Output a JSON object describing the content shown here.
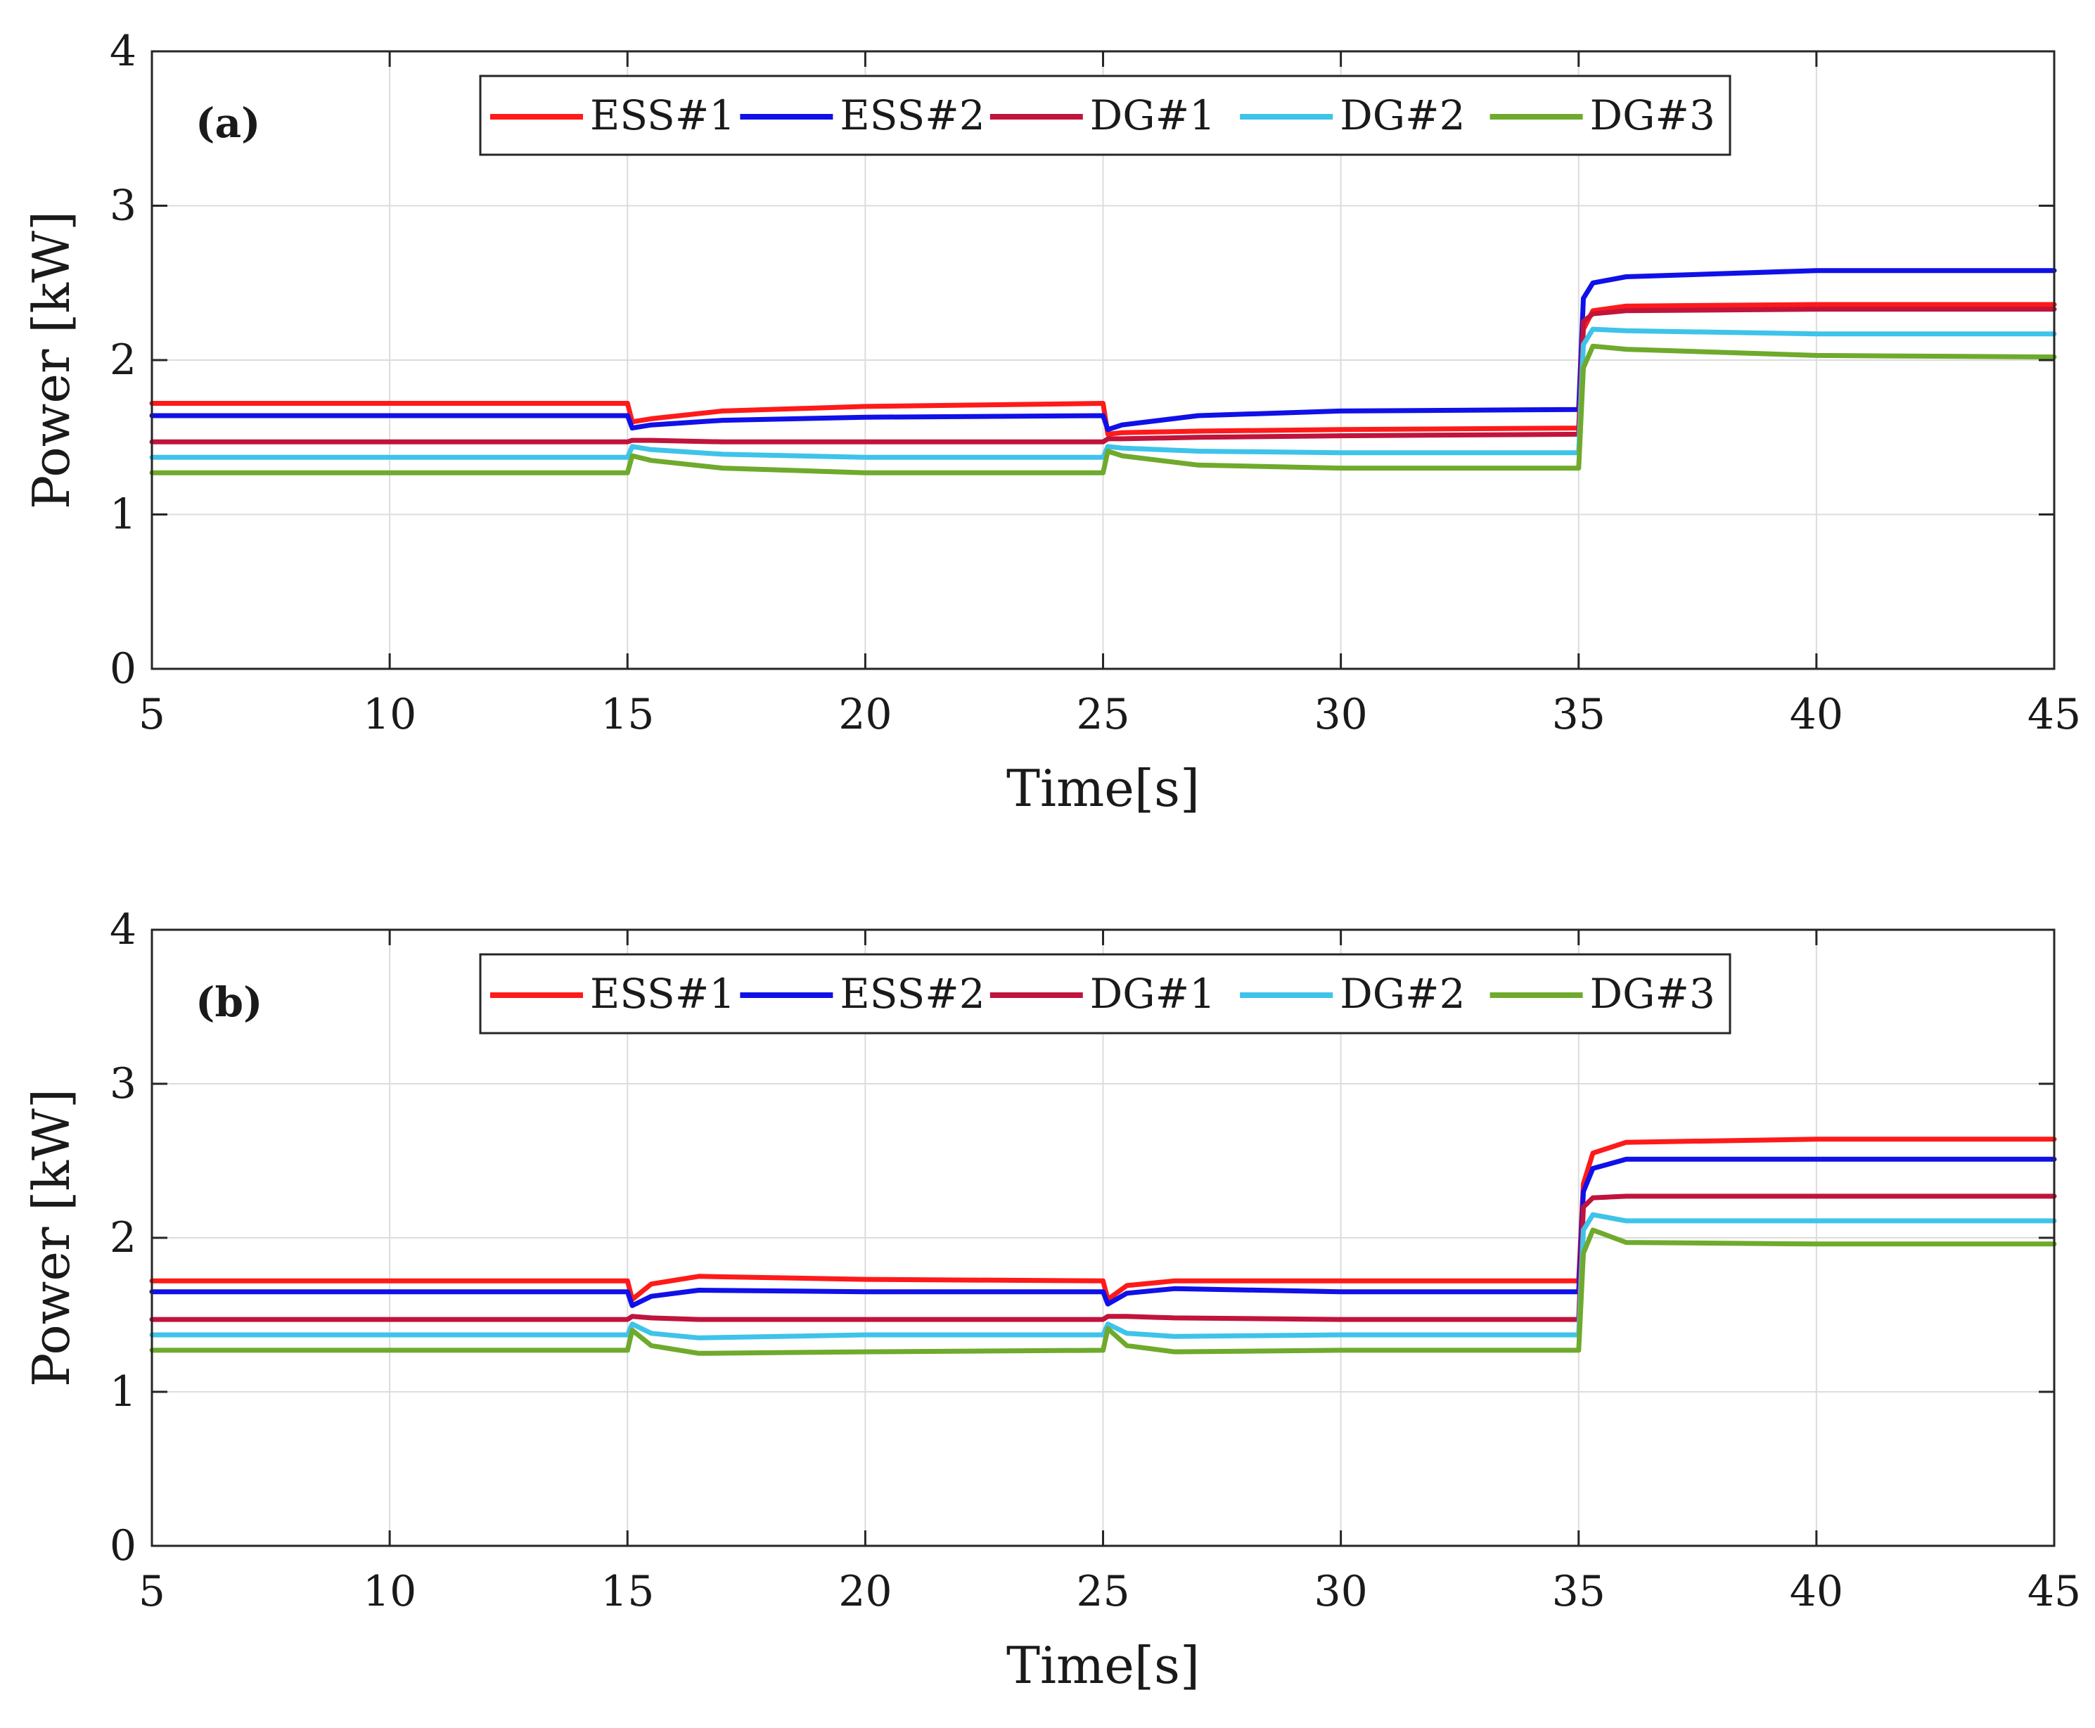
{
  "chart_data": [
    {
      "type": "line",
      "panel_label": "(a)",
      "xlabel": "Time[s]",
      "ylabel": "Power [kW]",
      "xlim": [
        5,
        45
      ],
      "ylim": [
        0,
        4
      ],
      "x_ticks": [
        5,
        10,
        15,
        20,
        25,
        30,
        35,
        40,
        45
      ],
      "y_ticks": [
        0,
        1,
        2,
        3,
        4
      ],
      "grid": true,
      "legend_position": "top-center",
      "series": [
        {
          "name": "ESS#1",
          "color": "#ff1a1a",
          "x": [
            5,
            15,
            15.1,
            15.5,
            17,
            20,
            25,
            25.1,
            25.4,
            27,
            30,
            35,
            35.1,
            35.3,
            36,
            40,
            45
          ],
          "y": [
            1.72,
            1.72,
            1.6,
            1.62,
            1.67,
            1.7,
            1.72,
            1.52,
            1.53,
            1.54,
            1.55,
            1.56,
            2.2,
            2.32,
            2.35,
            2.36,
            2.36
          ]
        },
        {
          "name": "ESS#2",
          "color": "#1010e8",
          "x": [
            5,
            15,
            15.1,
            15.5,
            17,
            20,
            25,
            25.1,
            25.4,
            27,
            30,
            35,
            35.1,
            35.3,
            36,
            40,
            45
          ],
          "y": [
            1.64,
            1.64,
            1.56,
            1.58,
            1.61,
            1.63,
            1.64,
            1.55,
            1.58,
            1.64,
            1.67,
            1.68,
            2.4,
            2.5,
            2.54,
            2.58,
            2.58
          ]
        },
        {
          "name": "DG#1",
          "color": "#c0143c",
          "x": [
            5,
            15,
            15.1,
            15.5,
            17,
            20,
            25,
            25.1,
            25.4,
            27,
            30,
            35,
            35.1,
            35.3,
            36,
            40,
            45
          ],
          "y": [
            1.47,
            1.47,
            1.48,
            1.48,
            1.47,
            1.47,
            1.47,
            1.49,
            1.49,
            1.5,
            1.51,
            1.52,
            2.25,
            2.3,
            2.32,
            2.33,
            2.33
          ]
        },
        {
          "name": "DG#2",
          "color": "#3ec3ea",
          "x": [
            5,
            15,
            15.1,
            15.5,
            17,
            20,
            25,
            25.1,
            25.4,
            27,
            30,
            35,
            35.1,
            35.3,
            36,
            40,
            45
          ],
          "y": [
            1.37,
            1.37,
            1.44,
            1.42,
            1.39,
            1.37,
            1.37,
            1.44,
            1.43,
            1.41,
            1.4,
            1.4,
            2.1,
            2.2,
            2.19,
            2.17,
            2.17
          ]
        },
        {
          "name": "DG#3",
          "color": "#6faa2c",
          "x": [
            5,
            15,
            15.1,
            15.5,
            17,
            20,
            25,
            25.1,
            25.4,
            27,
            30,
            35,
            35.1,
            35.3,
            36,
            40,
            45
          ],
          "y": [
            1.27,
            1.27,
            1.38,
            1.35,
            1.3,
            1.27,
            1.27,
            1.41,
            1.38,
            1.32,
            1.3,
            1.3,
            1.95,
            2.09,
            2.07,
            2.03,
            2.02
          ]
        }
      ]
    },
    {
      "type": "line",
      "panel_label": "(b)",
      "xlabel": "Time[s]",
      "ylabel": "Power [kW]",
      "xlim": [
        5,
        45
      ],
      "ylim": [
        0,
        4
      ],
      "x_ticks": [
        5,
        10,
        15,
        20,
        25,
        30,
        35,
        40,
        45
      ],
      "y_ticks": [
        0,
        1,
        2,
        3,
        4
      ],
      "grid": true,
      "legend_position": "top-center",
      "series": [
        {
          "name": "ESS#1",
          "color": "#ff1a1a",
          "x": [
            5,
            15,
            15.1,
            15.5,
            16.5,
            20,
            25,
            25.1,
            25.5,
            26.5,
            30,
            35,
            35.1,
            35.3,
            36,
            40,
            45
          ],
          "y": [
            1.72,
            1.72,
            1.6,
            1.7,
            1.75,
            1.73,
            1.72,
            1.6,
            1.69,
            1.72,
            1.72,
            1.72,
            2.35,
            2.55,
            2.62,
            2.64,
            2.64
          ]
        },
        {
          "name": "ESS#2",
          "color": "#1010e8",
          "x": [
            5,
            15,
            15.1,
            15.5,
            16.5,
            20,
            25,
            25.1,
            25.5,
            26.5,
            30,
            35,
            35.1,
            35.3,
            36,
            40,
            45
          ],
          "y": [
            1.65,
            1.65,
            1.56,
            1.62,
            1.66,
            1.65,
            1.65,
            1.57,
            1.64,
            1.67,
            1.65,
            1.65,
            2.3,
            2.45,
            2.51,
            2.51,
            2.51
          ]
        },
        {
          "name": "DG#1",
          "color": "#c0143c",
          "x": [
            5,
            15,
            15.1,
            15.5,
            16.5,
            20,
            25,
            25.1,
            25.5,
            26.5,
            30,
            35,
            35.1,
            35.3,
            36,
            40,
            45
          ],
          "y": [
            1.47,
            1.47,
            1.49,
            1.48,
            1.47,
            1.47,
            1.47,
            1.49,
            1.49,
            1.48,
            1.47,
            1.47,
            2.2,
            2.26,
            2.27,
            2.27,
            2.27
          ]
        },
        {
          "name": "DG#2",
          "color": "#3ec3ea",
          "x": [
            5,
            15,
            15.1,
            15.5,
            16.5,
            20,
            25,
            25.1,
            25.5,
            26.5,
            30,
            35,
            35.1,
            35.3,
            36,
            40,
            45
          ],
          "y": [
            1.37,
            1.37,
            1.44,
            1.38,
            1.35,
            1.37,
            1.37,
            1.44,
            1.38,
            1.36,
            1.37,
            1.37,
            2.05,
            2.15,
            2.11,
            2.11,
            2.11
          ]
        },
        {
          "name": "DG#3",
          "color": "#6faa2c",
          "x": [
            5,
            15,
            15.1,
            15.5,
            16.5,
            20,
            25,
            25.1,
            25.5,
            26.5,
            30,
            35,
            35.1,
            35.3,
            36,
            40,
            45
          ],
          "y": [
            1.27,
            1.27,
            1.4,
            1.3,
            1.25,
            1.26,
            1.27,
            1.41,
            1.3,
            1.26,
            1.27,
            1.27,
            1.9,
            2.05,
            1.97,
            1.96,
            1.96
          ]
        }
      ]
    }
  ]
}
